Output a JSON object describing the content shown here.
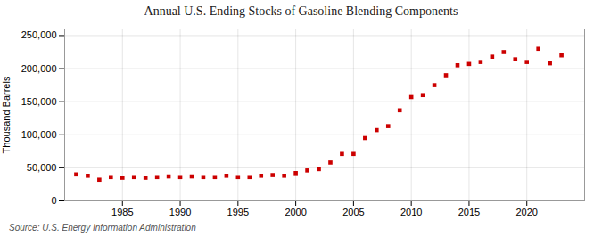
{
  "chart_data": {
    "type": "scatter",
    "title": "Annual U.S. Ending Stocks of Gasoline Blending Components",
    "ylabel": "Thousand Barrels",
    "source": "Source: U.S. Energy Information Administration",
    "x": [
      1981,
      1982,
      1983,
      1984,
      1985,
      1986,
      1987,
      1988,
      1989,
      1990,
      1991,
      1992,
      1993,
      1994,
      1995,
      1996,
      1997,
      1998,
      1999,
      2000,
      2001,
      2002,
      2003,
      2004,
      2005,
      2006,
      2007,
      2008,
      2009,
      2010,
      2011,
      2012,
      2013,
      2014,
      2015,
      2016,
      2017,
      2018,
      2019,
      2020,
      2021,
      2022,
      2023
    ],
    "values": [
      40000,
      38000,
      32000,
      36000,
      35000,
      36000,
      35000,
      36000,
      37000,
      36000,
      37000,
      36000,
      36000,
      38000,
      36000,
      36000,
      38000,
      39000,
      38000,
      42000,
      46000,
      48000,
      58000,
      71000,
      71000,
      95000,
      107000,
      113000,
      137000,
      157000,
      160000,
      175000,
      190000,
      205000,
      207000,
      210000,
      218000,
      225000,
      214000,
      210000,
      230000,
      208000,
      220000
    ],
    "color": "#cc0000",
    "marker": "square",
    "xlim": [
      1980,
      2025
    ],
    "xticks": [
      1985,
      1990,
      1995,
      2000,
      2005,
      2010,
      2015,
      2020
    ],
    "ylim": [
      0,
      260000
    ],
    "yticks": [
      0,
      {
        "value": 50000,
        "label": "50,000"
      },
      {
        "value": 100000,
        "label": "100,000"
      },
      {
        "value": 150000,
        "label": "150,000"
      },
      {
        "value": 200000,
        "label": "200,000"
      },
      {
        "value": 250000,
        "label": "250,000"
      }
    ],
    "grid": true
  }
}
